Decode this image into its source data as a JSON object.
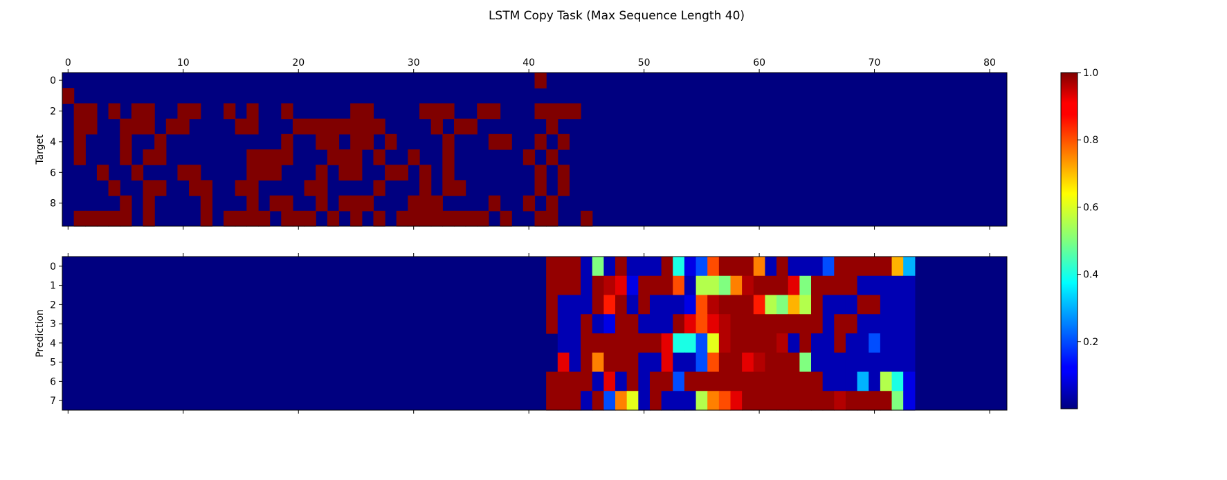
{
  "chart_data": {
    "type": "heatmap",
    "title": "LSTM Copy Task (Max Sequence Length 40)",
    "colormap": "jet",
    "colorbar": {
      "min": 0.0,
      "max": 1.0,
      "ticks": [
        "0.2",
        "0.4",
        "0.6",
        "0.8",
        "1.0"
      ],
      "tick_values": [
        0.2,
        0.4,
        0.6,
        0.8,
        1.0
      ]
    },
    "x_range": [
      -0.5,
      81.5
    ],
    "x_ticks": [
      0,
      10,
      20,
      30,
      40,
      50,
      60,
      70,
      80
    ],
    "x_tick_labels": [
      "0",
      "10",
      "20",
      "30",
      "40",
      "50",
      "60",
      "70",
      "80"
    ],
    "panels": [
      {
        "ylabel": "Target",
        "rows": 10,
        "y_ticks": [
          0,
          2,
          4,
          6,
          8
        ],
        "y_tick_labels": [
          "0",
          "2",
          "4",
          "6",
          "8"
        ],
        "x_tick_labels_shown": true,
        "matrix": [
          "0000000000000000000000000000000000000000010000000000000000000000000000000000000000",
          "1000000000000000000000000000000000000000000000000000000000000000000000000000000000",
          "0110101100110010100100000110000111001100011110000000000000000000000000000000000000",
          "0110011101100001100011111111000010110000001000000000000000000000000000000000000000",
          "0100010010000000000100110110100001000110010100000000000000000000000000000000000000",
          "0100010110000000111100011101001001000000101000000000000000000000000000000000000000",
          "0001001000110000111000101100110101000000010100000000000000000000000000000000000000",
          "0000100110011001100001100001000101100000010100000000000000000000000000000000000000",
          "0000010100001000101100101110001110000100101000000000000000000000000000000000000000",
          "0111110100001011110111010101011111111010011001000000000000000000000000000000000000"
        ]
      },
      {
        "ylabel": "Prediction",
        "rows": 8,
        "y_ticks": [
          0,
          1,
          2,
          3,
          4,
          5,
          6,
          7
        ],
        "y_tick_labels": [
          "0",
          "1",
          "2",
          "3",
          "4",
          "5",
          "6",
          "7"
        ],
        "x_tick_labels_shown": false,
        "nonzero_col_start": 42,
        "matrix": [
          [
            0.98,
            0.98,
            0.98,
            0.05,
            0.5,
            0.05,
            0.98,
            0.05,
            0.05,
            0.05,
            0.98,
            0.4,
            0.1,
            0.2,
            0.8,
            0.98,
            0.98,
            0.98,
            0.75,
            0.05,
            0.98,
            0.05,
            0.05,
            0.05,
            0.2,
            0.98,
            0.98,
            0.98,
            0.98,
            0.98,
            0.7,
            0.3
          ],
          [
            0.98,
            0.98,
            0.98,
            0.05,
            0.98,
            0.95,
            0.9,
            0.1,
            0.98,
            0.98,
            0.98,
            0.8,
            0.05,
            0.55,
            0.55,
            0.5,
            0.75,
            0.95,
            0.98,
            0.98,
            0.98,
            0.9,
            0.5,
            0.98,
            0.98,
            0.98,
            0.98,
            0.05,
            0.05,
            0.05,
            0.05,
            0.05
          ],
          [
            0.98,
            0.05,
            0.05,
            0.05,
            0.98,
            0.85,
            0.98,
            0.05,
            0.98,
            0.05,
            0.05,
            0.05,
            0.1,
            0.8,
            0.95,
            0.98,
            0.98,
            0.98,
            0.85,
            0.55,
            0.5,
            0.7,
            0.55,
            0.98,
            0.05,
            0.05,
            0.05,
            0.98,
            0.98,
            0.05,
            0.05,
            0.05
          ],
          [
            0.98,
            0.05,
            0.05,
            0.98,
            0.05,
            0.1,
            0.98,
            0.98,
            0.05,
            0.05,
            0.05,
            0.98,
            0.9,
            0.8,
            0.9,
            0.95,
            0.98,
            0.98,
            0.98,
            0.98,
            0.98,
            0.98,
            0.98,
            0.98,
            0.05,
            0.98,
            0.98,
            0.05,
            0.05,
            0.05,
            0.05,
            0.05
          ],
          [
            0.0,
            0.05,
            0.05,
            0.98,
            0.98,
            0.98,
            0.98,
            0.98,
            0.98,
            0.98,
            0.9,
            0.4,
            0.4,
            0.2,
            0.6,
            0.95,
            0.98,
            0.98,
            0.98,
            0.98,
            0.95,
            0.05,
            0.98,
            0.05,
            0.05,
            0.98,
            0.05,
            0.05,
            0.2,
            0.05,
            0.05,
            0.05
          ],
          [
            0.0,
            0.9,
            0.05,
            0.98,
            0.75,
            0.98,
            0.98,
            0.98,
            0.05,
            0.05,
            0.9,
            0.05,
            0.05,
            0.2,
            0.8,
            0.98,
            0.98,
            0.9,
            0.95,
            0.98,
            0.98,
            0.98,
            0.5,
            0.05,
            0.05,
            0.05,
            0.05,
            0.05,
            0.05,
            0.05,
            0.05,
            0.05
          ],
          [
            0.98,
            0.98,
            0.98,
            0.98,
            0.05,
            0.9,
            0.05,
            0.98,
            0.05,
            0.98,
            0.98,
            0.2,
            0.98,
            0.98,
            0.98,
            0.98,
            0.98,
            0.98,
            0.98,
            0.98,
            0.98,
            0.98,
            0.98,
            0.98,
            0.05,
            0.05,
            0.05,
            0.3,
            0.05,
            0.55,
            0.4,
            0.1
          ],
          [
            0.98,
            0.98,
            0.98,
            0.05,
            0.98,
            0.2,
            0.75,
            0.6,
            0.05,
            0.98,
            0.05,
            0.05,
            0.05,
            0.55,
            0.75,
            0.8,
            0.9,
            0.98,
            0.98,
            0.98,
            0.98,
            0.98,
            0.98,
            0.98,
            0.98,
            0.95,
            0.98,
            0.98,
            0.98,
            0.98,
            0.5,
            0.1
          ]
        ]
      }
    ]
  }
}
